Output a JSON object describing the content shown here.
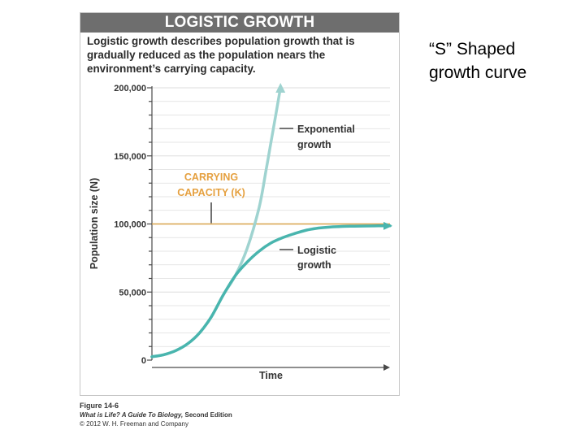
{
  "slide": {
    "title_line1": "“S” Shaped",
    "title_line2": "growth curve"
  },
  "figure": {
    "header": "LOGISTIC GROWTH",
    "description": "Logistic growth describes population growth that is gradually reduced as the population nears the environment’s carrying capacity."
  },
  "caption": {
    "figure_label": "Figure 14-6",
    "book_title": "What is Life? A Guide To Biology,",
    "book_edition": " Second Edition",
    "copyright": "© 2012 W. H. Freeman and Company"
  },
  "colors": {
    "exponential": "#9fd3d0",
    "logistic": "#49b5ae",
    "carrying_capacity": "#d8a34b",
    "carrying_label": "#e5a03f",
    "axis": "#4a4a4a",
    "grid": "#dedede",
    "text": "#333333"
  },
  "chart_data": {
    "type": "line",
    "xlabel": "Time",
    "ylabel": "Population size (N)",
    "ylim": [
      0,
      200000
    ],
    "yticks": [
      0,
      50000,
      100000,
      150000,
      200000
    ],
    "ytick_labels": [
      "0",
      "50,000",
      "100,000",
      "150,000",
      "200,000"
    ],
    "x_numeric_labels": false,
    "grid": "horizontal",
    "carrying_capacity": {
      "value": 100000,
      "label_line1": "CARRYING",
      "label_line2": "CAPACITY (K)"
    },
    "series": [
      {
        "name": "Exponential growth",
        "label_line1": "Exponential",
        "label_line2": "growth",
        "x": [
          0,
          0.05,
          0.1,
          0.15,
          0.2,
          0.25,
          0.3,
          0.35,
          0.4,
          0.45,
          0.48,
          0.5,
          0.52,
          0.54
        ],
        "y": [
          2500,
          4000,
          7000,
          12000,
          20000,
          32000,
          48000,
          62000,
          82000,
          112000,
          140000,
          160000,
          180000,
          200000
        ]
      },
      {
        "name": "Logistic growth",
        "label_line1": "Logistic",
        "label_line2": "growth",
        "x": [
          0,
          0.05,
          0.1,
          0.15,
          0.2,
          0.25,
          0.3,
          0.35,
          0.4,
          0.45,
          0.5,
          0.55,
          0.6,
          0.65,
          0.7,
          0.75,
          0.8,
          0.85,
          0.9,
          0.95,
          1.0
        ],
        "y": [
          2500,
          4000,
          7000,
          12000,
          20000,
          32000,
          48000,
          62000,
          72000,
          80000,
          86000,
          90000,
          93000,
          95500,
          97000,
          97800,
          98200,
          98400,
          98500,
          98600,
          98600
        ]
      }
    ]
  }
}
